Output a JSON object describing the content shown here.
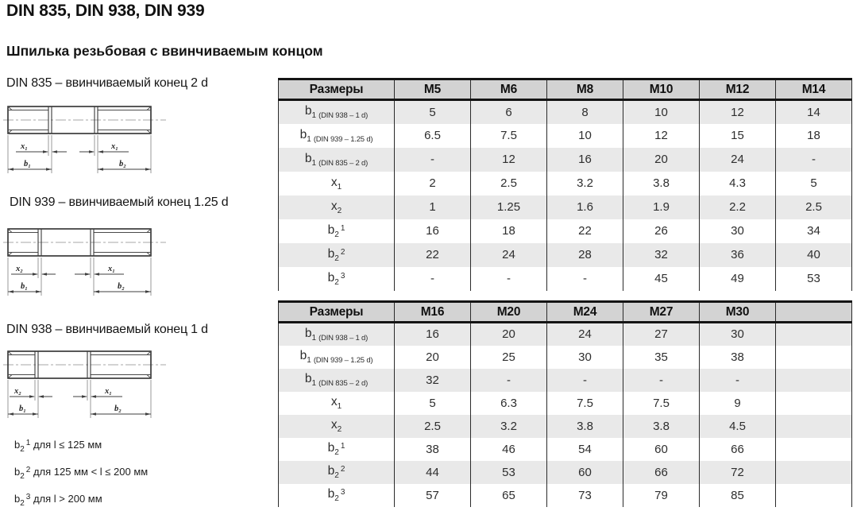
{
  "page": {
    "title": "DIN 835, DIN 938, DIN 939",
    "subtitle": "Шпилька резьбовая с ввинчиваемым концом"
  },
  "diagrams": [
    {
      "standard": "DIN 835",
      "label": "DIN 835 – ввинчиваемый конец 2 d",
      "dims": {
        "left": "x₁",
        "right": "x₁",
        "b_left": "b₁",
        "b_right": "b₂"
      }
    },
    {
      "standard": "DIN 939",
      "label": "DIN 939 – ввинчиваемый конец 1.25 d",
      "dims": {
        "left": "x₂",
        "right": "x₁",
        "b_left": "b₁",
        "b_right": "b₂"
      }
    },
    {
      "standard": "DIN 938",
      "label": "DIN 938 – ввинчиваемый конец 1 d",
      "dims": {
        "left": "x₂",
        "right": "x₁",
        "b_left": "b₁",
        "b_right": "b₂"
      }
    }
  ],
  "footnotes": [
    {
      "base": "b",
      "sub": "2",
      "sup": "1",
      "text": "для l ≤ 125 мм"
    },
    {
      "base": "b",
      "sub": "2",
      "sup": "2",
      "text": "для 125 мм < l ≤ 200 мм"
    },
    {
      "base": "b",
      "sub": "2",
      "sup": "3",
      "text": "для l > 200 мм"
    }
  ],
  "tables": [
    {
      "name": "sizes-m5-m14",
      "header_label": "Размеры",
      "columns": [
        "M5",
        "M6",
        "M8",
        "M10",
        "M12",
        "M14"
      ],
      "rows": [
        {
          "label": {
            "base": "b",
            "sub": "1",
            "note": "(DIN 938 – 1 d)"
          },
          "values": [
            "5",
            "6",
            "8",
            "10",
            "12",
            "14"
          ]
        },
        {
          "label": {
            "base": "b",
            "sub": "1",
            "note": "(DIN 939 – 1.25 d)"
          },
          "values": [
            "6.5",
            "7.5",
            "10",
            "12",
            "15",
            "18"
          ]
        },
        {
          "label": {
            "base": "b",
            "sub": "1",
            "note": "(DIN 835 – 2 d)"
          },
          "values": [
            "-",
            "12",
            "16",
            "20",
            "24",
            "-"
          ]
        },
        {
          "label": {
            "base": "x",
            "sub": "1"
          },
          "values": [
            "2",
            "2.5",
            "3.2",
            "3.8",
            "4.3",
            "5"
          ]
        },
        {
          "label": {
            "base": "x",
            "sub": "2"
          },
          "values": [
            "1",
            "1.25",
            "1.6",
            "1.9",
            "2.2",
            "2.5"
          ]
        },
        {
          "label": {
            "base": "b",
            "sub": "2",
            "sup": "1"
          },
          "values": [
            "16",
            "18",
            "22",
            "26",
            "30",
            "34"
          ]
        },
        {
          "label": {
            "base": "b",
            "sub": "2",
            "sup": "2"
          },
          "values": [
            "22",
            "24",
            "28",
            "32",
            "36",
            "40"
          ]
        },
        {
          "label": {
            "base": "b",
            "sub": "2",
            "sup": "3"
          },
          "values": [
            "-",
            "-",
            "-",
            "45",
            "49",
            "53"
          ]
        }
      ]
    },
    {
      "name": "sizes-m16-m30",
      "header_label": "Размеры",
      "columns": [
        "M16",
        "M20",
        "M24",
        "M27",
        "M30",
        ""
      ],
      "rows": [
        {
          "label": {
            "base": "b",
            "sub": "1",
            "note": "(DIN 938 – 1 d)"
          },
          "values": [
            "16",
            "20",
            "24",
            "27",
            "30",
            ""
          ]
        },
        {
          "label": {
            "base": "b",
            "sub": "1",
            "note": "(DIN 939 – 1.25 d)"
          },
          "values": [
            "20",
            "25",
            "30",
            "35",
            "38",
            ""
          ]
        },
        {
          "label": {
            "base": "b",
            "sub": "1",
            "note": "(DIN 835 – 2 d)"
          },
          "values": [
            "32",
            "-",
            "-",
            "-",
            "-",
            ""
          ]
        },
        {
          "label": {
            "base": "x",
            "sub": "1"
          },
          "values": [
            "5",
            "6.3",
            "7.5",
            "7.5",
            "9",
            ""
          ]
        },
        {
          "label": {
            "base": "x",
            "sub": "2"
          },
          "values": [
            "2.5",
            "3.2",
            "3.8",
            "3.8",
            "4.5",
            ""
          ]
        },
        {
          "label": {
            "base": "b",
            "sub": "2",
            "sup": "1"
          },
          "values": [
            "38",
            "46",
            "54",
            "60",
            "66",
            ""
          ]
        },
        {
          "label": {
            "base": "b",
            "sub": "2",
            "sup": "2"
          },
          "values": [
            "44",
            "53",
            "60",
            "66",
            "72",
            ""
          ]
        },
        {
          "label": {
            "base": "b",
            "sub": "2",
            "sup": "3"
          },
          "values": [
            "57",
            "65",
            "73",
            "79",
            "85",
            ""
          ]
        }
      ]
    }
  ],
  "colors": {
    "header_bg": "#d3d3d3",
    "row_alt_bg": "#e9e9e9",
    "border": "#141414",
    "text": "#262626"
  }
}
